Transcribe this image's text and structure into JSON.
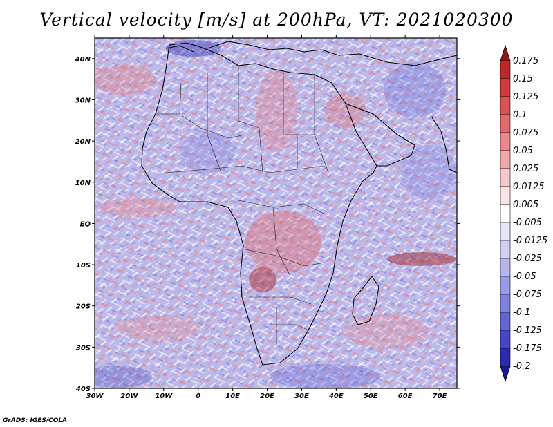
{
  "title": "Vertical velocity [m/s] at 200hPa, VT: 2021020300",
  "credit": "GrADS: IGES/COLA",
  "map": {
    "variable": "Vertical velocity",
    "units": "m/s",
    "level": "200hPa",
    "valid_time": "2021020300",
    "lon_range": [
      -30,
      75
    ],
    "lat_range": [
      -40,
      45
    ],
    "x_ticks": [
      "30W",
      "20W",
      "10W",
      "0",
      "10E",
      "20E",
      "30E",
      "40E",
      "50E",
      "60E",
      "70E"
    ],
    "y_ticks": [
      "40N",
      "30N",
      "20N",
      "10N",
      "EQ",
      "10S",
      "20S",
      "30S",
      "40S"
    ]
  },
  "colorbar": {
    "levels": [
      "0.175",
      "0.15",
      "0.125",
      "0.1",
      "0.075",
      "0.05",
      "0.025",
      "0.0125",
      "0.005",
      "-0.005",
      "-0.0125",
      "-0.025",
      "-0.05",
      "-0.075",
      "-0.1",
      "-0.125",
      "-0.175",
      "-0.2"
    ],
    "colors": [
      "#a01010",
      "#c02828",
      "#d03a3a",
      "#dc5252",
      "#e46a6a",
      "#ec8888",
      "#f3a8a8",
      "#f8c8c8",
      "#fce4e4",
      "#ffffff",
      "#e6e6fa",
      "#cfcff4",
      "#b6b6ee",
      "#9a9ae6",
      "#8080de",
      "#6464d4",
      "#4646c8",
      "#2a2ab4",
      "#1a1a96"
    ]
  }
}
